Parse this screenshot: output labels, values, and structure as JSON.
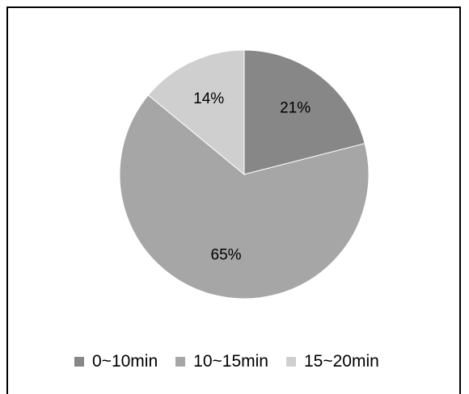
{
  "chart_data": {
    "type": "pie",
    "categories": [
      "0~10min",
      "10~15min",
      "15~20min"
    ],
    "values": [
      21,
      65,
      14
    ],
    "labels": [
      "21%",
      "65%",
      "14%"
    ],
    "colors": [
      "#878787",
      "#a6a6a6",
      "#cfcfcf"
    ],
    "start_angle": "12 o'clock",
    "direction": "clockwise",
    "legend_position": "bottom"
  }
}
